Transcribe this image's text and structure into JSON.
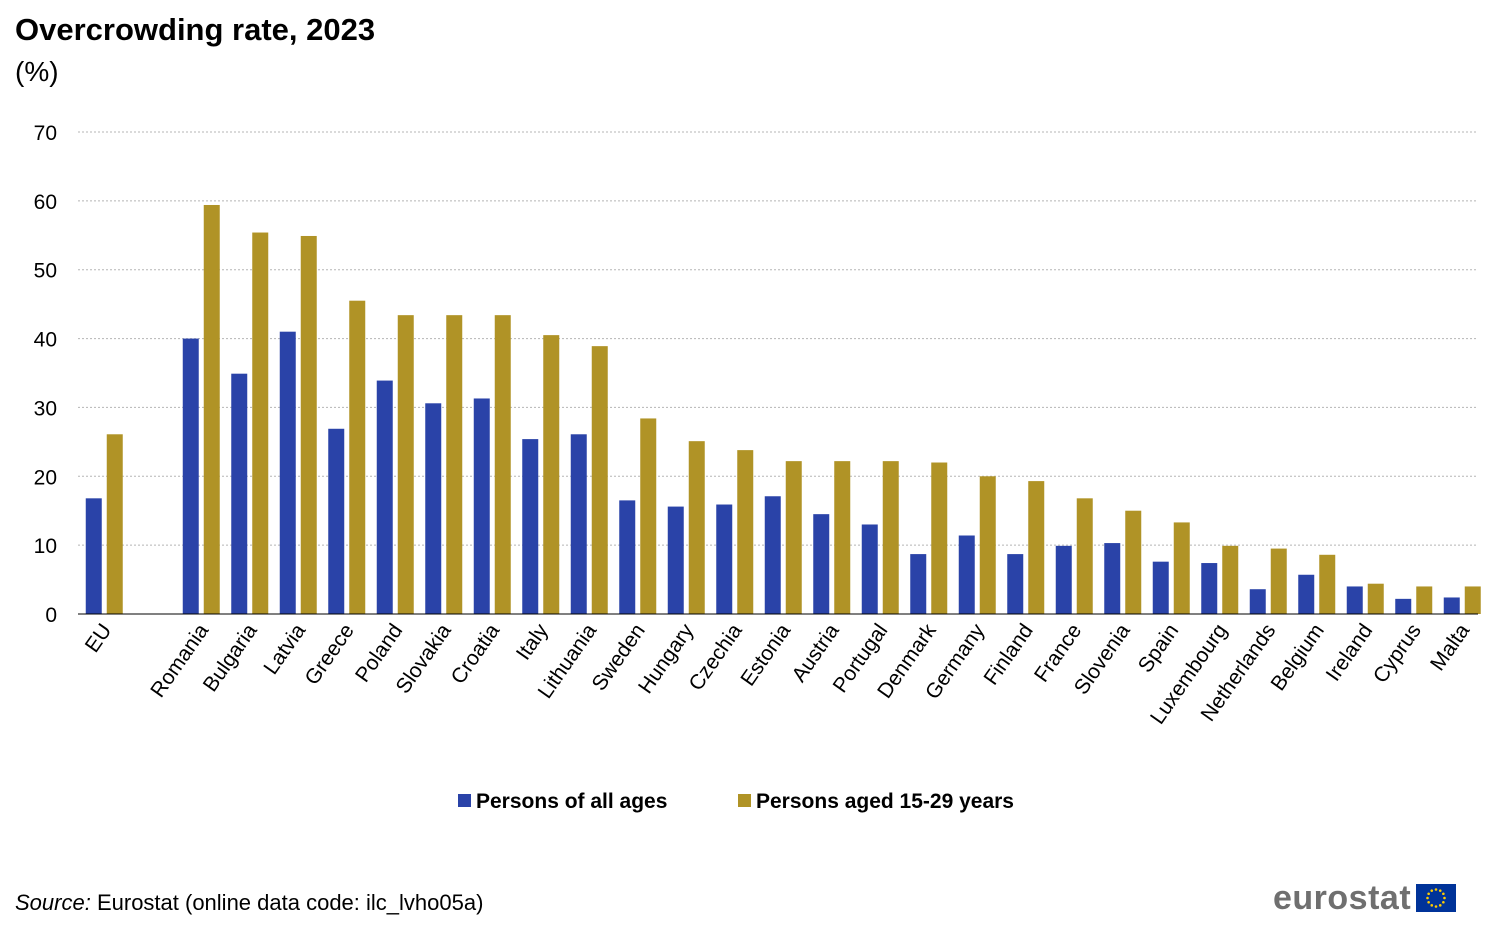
{
  "chart_data": {
    "type": "bar",
    "title": "Overcrowding rate, 2023",
    "subtitle": "(%)",
    "categories": [
      "EU",
      "Romania",
      "Bulgaria",
      "Latvia",
      "Greece",
      "Poland",
      "Slovakia",
      "Croatia",
      "Italy",
      "Lithuania",
      "Sweden",
      "Hungary",
      "Czechia",
      "Estonia",
      "Austria",
      "Portugal",
      "Denmark",
      "Germany",
      "Finland",
      "France",
      "Slovenia",
      "Spain",
      "Luxembourg",
      "Netherlands",
      "Belgium",
      "Ireland",
      "Cyprus",
      "Malta"
    ],
    "series": [
      {
        "name": "Persons of all ages",
        "color": "#2a43a8",
        "values": [
          16.8,
          40.0,
          34.9,
          41.0,
          26.9,
          33.9,
          30.6,
          31.3,
          25.4,
          26.1,
          16.5,
          15.6,
          15.9,
          17.1,
          14.5,
          13.0,
          8.7,
          11.4,
          8.7,
          9.9,
          10.3,
          7.6,
          7.4,
          3.6,
          5.7,
          4.0,
          2.2,
          2.4
        ]
      },
      {
        "name": "Persons aged 15-29 years",
        "color": "#b09326",
        "values": [
          26.1,
          59.4,
          55.4,
          54.9,
          45.5,
          43.4,
          43.4,
          43.4,
          40.5,
          38.9,
          28.4,
          25.1,
          23.8,
          22.2,
          22.2,
          22.2,
          22.0,
          20.0,
          19.3,
          16.8,
          15.0,
          13.3,
          9.9,
          9.5,
          8.6,
          4.4,
          4.0,
          4.0
        ]
      }
    ],
    "ylim": [
      0,
      70
    ],
    "yticks": [
      0,
      10,
      20,
      30,
      40,
      50,
      60,
      70
    ],
    "grid": true,
    "legend_position": "bottom-center"
  },
  "source": {
    "label": "Source:",
    "text": "Eurostat (online data code: ilc_lvho05a)"
  },
  "logo": {
    "text": "eurostat",
    "flag_color": "#003399",
    "star_color": "#ffcc00"
  }
}
